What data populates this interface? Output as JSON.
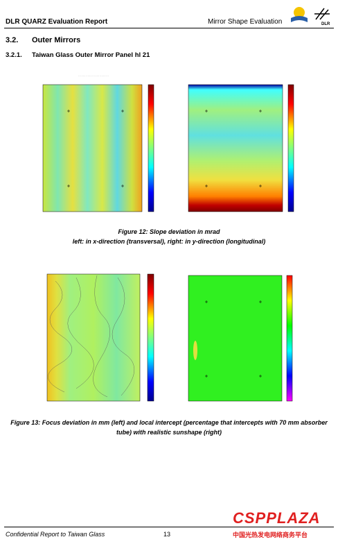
{
  "header": {
    "left": "DLR QUARZ Evaluation Report",
    "right": "Mirror Shape Evaluation",
    "logo": "DLR"
  },
  "section": {
    "number": "3.2.",
    "title": "Outer Mirrors"
  },
  "subsection": {
    "number": "3.2.1.",
    "title": "Taiwan Glass Outer Mirror Panel hl 21"
  },
  "figure12": {
    "caption_line1": "Figure 12: Slope deviation in mrad",
    "caption_line2": "left: in x-direction (transversal), right: in y-direction (longitudinal)"
  },
  "figure13": {
    "caption": "Figure 13: Focus deviation in mm (left) and local intercept (percentage that intercepts with 70 mm absorber tube) with realistic sunshape (right)"
  },
  "footer": {
    "left": "Confidential Report to Taiwan Glass",
    "page": "13",
    "watermark": "CSPPLAZA",
    "watermark_sub": "中国光热发电网络商务平台"
  }
}
